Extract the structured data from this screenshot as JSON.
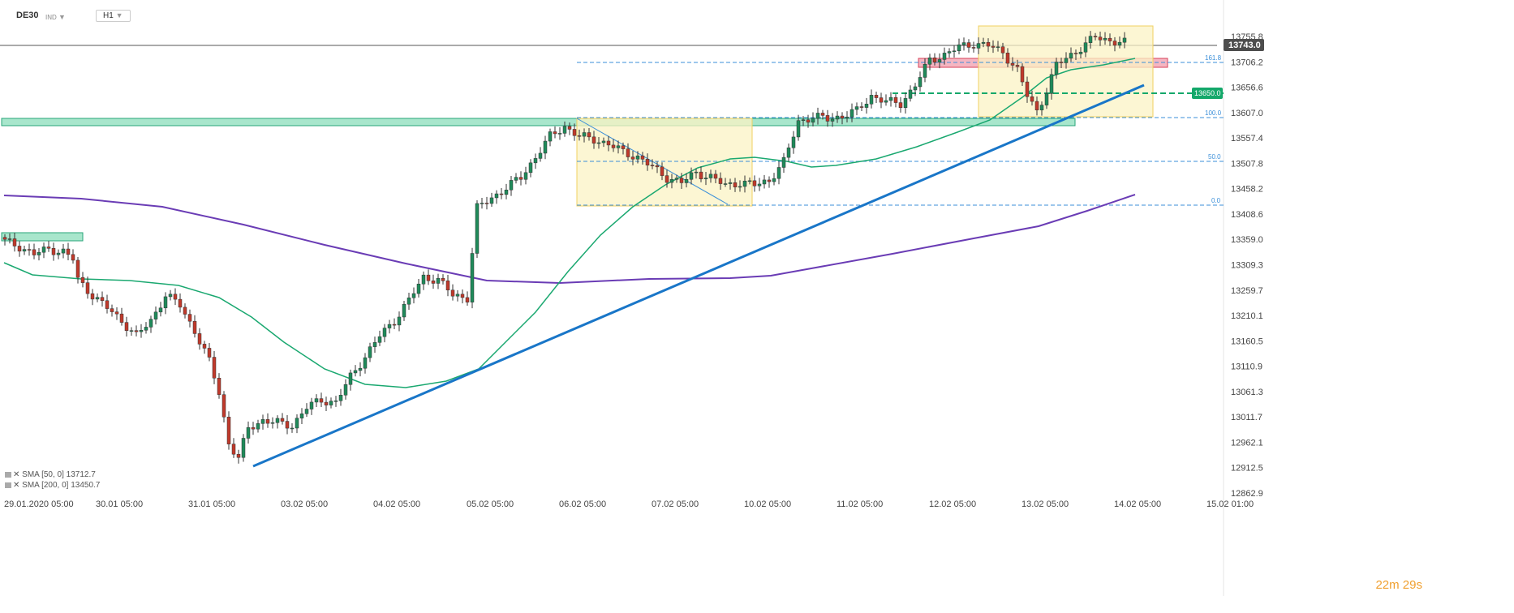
{
  "header": {
    "symbol": "DE30",
    "instrument_tag": "IND",
    "timeframe": "H1"
  },
  "price_axis": {
    "current_price_label": "13743.0",
    "level_label": "13650.0",
    "ticks": [
      "13755.8",
      "13706.2",
      "13656.6",
      "13607.0",
      "13557.4",
      "13507.8",
      "13458.2",
      "13408.6",
      "13359.0",
      "13309.3",
      "13259.7",
      "13210.1",
      "13160.5",
      "13110.9",
      "13061.3",
      "13011.7",
      "12962.1",
      "12912.5",
      "12862.9"
    ]
  },
  "time_axis": {
    "ticks": [
      "29.01.2020  05:00",
      "30.01  05:00",
      "31.01  05:00",
      "03.02  05:00",
      "04.02  05:00",
      "05.02  05:00",
      "06.02  05:00",
      "07.02  05:00",
      "10.02  05:00",
      "11.02  05:00",
      "12.02  05:00",
      "13.02  05:00",
      "14.02  05:00",
      "15.02  01:00"
    ]
  },
  "fib_levels": [
    {
      "label": "161.8",
      "price": 13712
    },
    {
      "label": "100.0",
      "price": 13607
    },
    {
      "label": "50.0",
      "price": 13515
    },
    {
      "label": "0.0",
      "price": 13430
    }
  ],
  "indicators": [
    {
      "label": "SMA [50, 0] 13712.7"
    },
    {
      "label": "SMA [200, 0] 13450.7"
    }
  ],
  "timer": "22m 29s",
  "colors": {
    "bull": "#1f8a5a",
    "bear": "#c0392b",
    "sma50": "#1aa870",
    "sma200": "#6a3cb5",
    "trend": "#1976c8",
    "fib": "#3b8fd9",
    "zone_green": "#a8e6cc",
    "zone_red": "#f5b6c2",
    "zone_yellow": "#fbf3c4",
    "current_price_bg": "#4d4d4d",
    "level_bg": "#14a86a"
  },
  "chart_data": {
    "type": "candlestick",
    "symbol": "DE30",
    "timeframe": "H1",
    "ylim": [
      12862.9,
      13780
    ],
    "x_ticks": [
      "29.01.2020 05:00",
      "30.01 05:00",
      "31.01 05:00",
      "03.02 05:00",
      "04.02 05:00",
      "05.02 05:00",
      "06.02 05:00",
      "07.02 05:00",
      "10.02 05:00",
      "11.02 05:00",
      "12.02 05:00",
      "13.02 05:00",
      "14.02 05:00",
      "15.02 01:00"
    ],
    "close_path": [
      [
        0,
        13355
      ],
      [
        3,
        13345
      ],
      [
        6,
        13330
      ],
      [
        9,
        13340
      ],
      [
        12,
        13335
      ],
      [
        14,
        13320
      ],
      [
        15,
        13280
      ],
      [
        18,
        13250
      ],
      [
        21,
        13225
      ],
      [
        24,
        13200
      ],
      [
        27,
        13170
      ],
      [
        30,
        13200
      ],
      [
        33,
        13250
      ],
      [
        36,
        13230
      ],
      [
        39,
        13180
      ],
      [
        42,
        13120
      ],
      [
        44,
        13060
      ],
      [
        46,
        12960
      ],
      [
        48,
        12930
      ],
      [
        50,
        12990
      ],
      [
        53,
        13005
      ],
      [
        56,
        13000
      ],
      [
        59,
        12995
      ],
      [
        62,
        13030
      ],
      [
        65,
        13045
      ],
      [
        68,
        13040
      ],
      [
        71,
        13090
      ],
      [
        74,
        13130
      ],
      [
        77,
        13170
      ],
      [
        80,
        13200
      ],
      [
        83,
        13240
      ],
      [
        86,
        13285
      ],
      [
        89,
        13280
      ],
      [
        92,
        13250
      ],
      [
        95,
        13245
      ],
      [
        97,
        13420
      ],
      [
        100,
        13440
      ],
      [
        103,
        13460
      ],
      [
        106,
        13480
      ],
      [
        109,
        13520
      ],
      [
        112,
        13560
      ],
      [
        115,
        13580
      ],
      [
        118,
        13560
      ],
      [
        121,
        13555
      ],
      [
        124,
        13545
      ],
      [
        127,
        13530
      ],
      [
        130,
        13520
      ],
      [
        133,
        13500
      ],
      [
        136,
        13480
      ],
      [
        139,
        13470
      ],
      [
        142,
        13490
      ],
      [
        145,
        13480
      ],
      [
        148,
        13465
      ],
      [
        151,
        13470
      ],
      [
        154,
        13465
      ],
      [
        157,
        13475
      ],
      [
        160,
        13510
      ],
      [
        163,
        13590
      ],
      [
        166,
        13598
      ],
      [
        169,
        13595
      ],
      [
        172,
        13600
      ],
      [
        175,
        13610
      ],
      [
        178,
        13640
      ],
      [
        181,
        13628
      ],
      [
        184,
        13625
      ],
      [
        187,
        13660
      ],
      [
        190,
        13710
      ],
      [
        193,
        13720
      ],
      [
        196,
        13735
      ],
      [
        199,
        13742
      ],
      [
        202,
        13738
      ],
      [
        205,
        13725
      ],
      [
        208,
        13690
      ],
      [
        210,
        13640
      ],
      [
        212,
        13610
      ],
      [
        214,
        13650
      ],
      [
        216,
        13700
      ],
      [
        219,
        13720
      ],
      [
        222,
        13740
      ],
      [
        224,
        13755
      ],
      [
        227,
        13748
      ],
      [
        230,
        13743
      ]
    ],
    "sma50": {
      "name": "SMA [50, 0]",
      "last": 13712.7
    },
    "sma200": {
      "name": "SMA [200, 0]",
      "last": 13450.7
    },
    "trendline": [
      [
        0,
        12920
      ],
      [
        1,
        13650
      ]
    ],
    "zones": [
      {
        "type": "support",
        "color": "green",
        "price_range": [
          13590,
          13610
        ]
      },
      {
        "type": "support",
        "color": "green",
        "price_range": [
          13355,
          13378
        ]
      },
      {
        "type": "resistance",
        "color": "red",
        "price_range": [
          13695,
          13720
        ]
      }
    ],
    "fibonacci": {
      "levels": [
        "161.8",
        "100.0",
        "50.0",
        "0.0"
      ],
      "prices": [
        13712,
        13607,
        13515,
        13430
      ]
    },
    "horizontal_level": 13650.0,
    "last_price": 13743.0
  }
}
